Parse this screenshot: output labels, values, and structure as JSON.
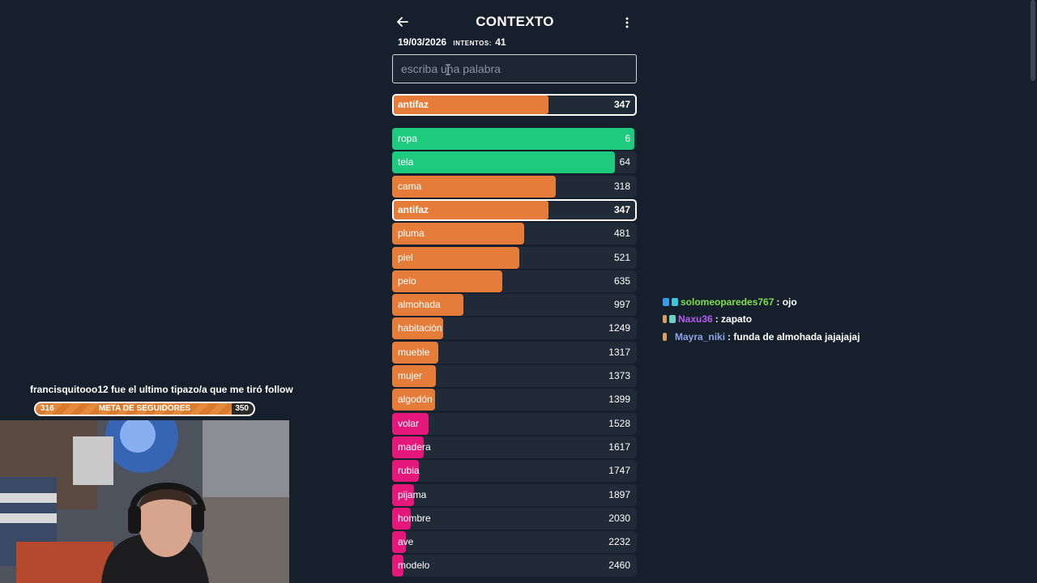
{
  "header": {
    "title": "CONTEXTO",
    "date": "19/03/2026",
    "attempts_label": "INTENTOS:",
    "attempts": "41"
  },
  "search": {
    "placeholder": "escriba una palabra",
    "value": ""
  },
  "current_guess": {
    "word": "antifaz",
    "rank": "347",
    "color": "#e57c3a",
    "proximity": 0.64
  },
  "colors": {
    "green": "#1ecb7e",
    "orange": "#e57c3a",
    "pink": "#e5177b",
    "track": "#212b38",
    "background": "#16202c"
  },
  "guesses": [
    {
      "word": "ropa",
      "rank": "6",
      "color": "#1ecb7e",
      "proximity": 0.99,
      "current": false
    },
    {
      "word": "tela",
      "rank": "64",
      "color": "#1ecb7e",
      "proximity": 0.91,
      "current": false
    },
    {
      "word": "cama",
      "rank": "318",
      "color": "#e57c3a",
      "proximity": 0.67,
      "current": false
    },
    {
      "word": "antifaz",
      "rank": "347",
      "color": "#e57c3a",
      "proximity": 0.64,
      "current": true
    },
    {
      "word": "pluma",
      "rank": "481",
      "color": "#e57c3a",
      "proximity": 0.54,
      "current": false
    },
    {
      "word": "piel",
      "rank": "521",
      "color": "#e57c3a",
      "proximity": 0.52,
      "current": false
    },
    {
      "word": "pelo",
      "rank": "635",
      "color": "#e57c3a",
      "proximity": 0.45,
      "current": false
    },
    {
      "word": "almohada",
      "rank": "997",
      "color": "#e57c3a",
      "proximity": 0.29,
      "current": false
    },
    {
      "word": "habitación",
      "rank": "1249",
      "color": "#e57c3a",
      "proximity": 0.21,
      "current": false
    },
    {
      "word": "mueble",
      "rank": "1317",
      "color": "#e57c3a",
      "proximity": 0.19,
      "current": false
    },
    {
      "word": "mujer",
      "rank": "1373",
      "color": "#e57c3a",
      "proximity": 0.18,
      "current": false
    },
    {
      "word": "algodón",
      "rank": "1399",
      "color": "#e57c3a",
      "proximity": 0.175,
      "current": false
    },
    {
      "word": "volar",
      "rank": "1528",
      "color": "#e5177b",
      "proximity": 0.15,
      "current": false
    },
    {
      "word": "madera",
      "rank": "1617",
      "color": "#e5177b",
      "proximity": 0.13,
      "current": false
    },
    {
      "word": "rubia",
      "rank": "1747",
      "color": "#e5177b",
      "proximity": 0.11,
      "current": false
    },
    {
      "word": "pijama",
      "rank": "1897",
      "color": "#e5177b",
      "proximity": 0.09,
      "current": false
    },
    {
      "word": "hombre",
      "rank": "2030",
      "color": "#e5177b",
      "proximity": 0.075,
      "current": false
    },
    {
      "word": "ave",
      "rank": "2232",
      "color": "#e5177b",
      "proximity": 0.055,
      "current": false
    },
    {
      "word": "modelo",
      "rank": "2460",
      "color": "#e5177b",
      "proximity": 0.045,
      "current": false
    }
  ],
  "chat": [
    {
      "user": "solomeoparedes767",
      "user_color": "#7ee04a",
      "message": ": ojo"
    },
    {
      "user": "Naxu36",
      "user_color": "#b45cf0",
      "message": ": zapato"
    },
    {
      "user": "Mayra_niki",
      "user_color": "#8aa4e8",
      "message": ": funda de almohada jajajajaj"
    }
  ],
  "overlay": {
    "follow_text": "francisquitooo12 fue el ultimo tipazo/a que me tiró follow",
    "goal_current": "316",
    "goal_label": "META DE SEGUIDORES",
    "goal_target": "350",
    "goal_progress": 0.9
  }
}
